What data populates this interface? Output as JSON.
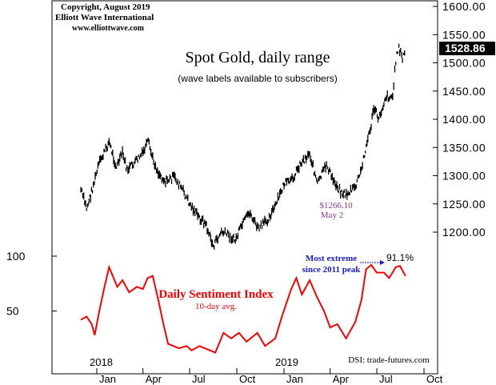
{
  "header": {
    "copyright": "Copyright, August 2019",
    "publisher": "Elliott Wave International",
    "url": "www.elliottwave.com"
  },
  "chart_data": {
    "type": "line",
    "title": "Spot Gold, daily range",
    "subtitle": "(wave labels available to subscribers)",
    "x_axis": {
      "ticks": [
        "Jan",
        "Apr",
        "Jul",
        "Oct",
        "Jan",
        "Apr",
        "Jul",
        "Oct"
      ],
      "year_labels": [
        "2018",
        "2019"
      ]
    },
    "price_axis": {
      "side": "right",
      "range": [
        1150,
        1610
      ],
      "ticks": [
        "1600.00",
        "1550.00",
        "1500.00",
        "1450.00",
        "1400.00",
        "1350.00",
        "1300.00",
        "1250.00",
        "1200.00"
      ],
      "last_value": "1528.86"
    },
    "sentiment_axis": {
      "side": "left",
      "range": [
        0,
        100
      ],
      "ticks": [
        "100",
        "50"
      ]
    },
    "series": [
      {
        "name": "Spot Gold",
        "color": "#000000",
        "points": [
          [
            "2017-12-01",
            1275
          ],
          [
            "2017-12-12",
            1242
          ],
          [
            "2017-12-20",
            1265
          ],
          [
            "2018-01-05",
            1320
          ],
          [
            "2018-01-25",
            1360
          ],
          [
            "2018-02-08",
            1315
          ],
          [
            "2018-02-20",
            1340
          ],
          [
            "2018-03-01",
            1310
          ],
          [
            "2018-03-15",
            1322
          ],
          [
            "2018-04-01",
            1340
          ],
          [
            "2018-04-11",
            1360
          ],
          [
            "2018-04-20",
            1330
          ],
          [
            "2018-05-01",
            1305
          ],
          [
            "2018-05-15",
            1290
          ],
          [
            "2018-06-01",
            1298
          ],
          [
            "2018-06-15",
            1278
          ],
          [
            "2018-07-01",
            1250
          ],
          [
            "2018-07-20",
            1225
          ],
          [
            "2018-08-01",
            1215
          ],
          [
            "2018-08-16",
            1175
          ],
          [
            "2018-09-01",
            1200
          ],
          [
            "2018-09-15",
            1195
          ],
          [
            "2018-09-28",
            1185
          ],
          [
            "2018-10-10",
            1210
          ],
          [
            "2018-10-26",
            1235
          ],
          [
            "2018-11-12",
            1205
          ],
          [
            "2018-11-28",
            1220
          ],
          [
            "2018-12-15",
            1245
          ],
          [
            "2019-01-01",
            1285
          ],
          [
            "2019-01-15",
            1290
          ],
          [
            "2019-02-01",
            1320
          ],
          [
            "2019-02-20",
            1340
          ],
          [
            "2019-03-07",
            1285
          ],
          [
            "2019-03-25",
            1320
          ],
          [
            "2019-04-05",
            1295
          ],
          [
            "2019-04-23",
            1270
          ],
          [
            "2019-05-02",
            1266
          ],
          [
            "2019-05-20",
            1280
          ],
          [
            "2019-06-01",
            1310
          ],
          [
            "2019-06-07",
            1340
          ],
          [
            "2019-06-20",
            1390
          ],
          [
            "2019-06-25",
            1420
          ],
          [
            "2019-07-05",
            1400
          ],
          [
            "2019-07-18",
            1440
          ],
          [
            "2019-08-01",
            1440
          ],
          [
            "2019-08-07",
            1505
          ],
          [
            "2019-08-13",
            1530
          ],
          [
            "2019-08-20",
            1505
          ],
          [
            "2019-08-26",
            1528.86
          ]
        ]
      },
      {
        "name": "Daily Sentiment Index",
        "color": "#ff0000",
        "points": [
          [
            "2017-12-01",
            42
          ],
          [
            "2017-12-12",
            45
          ],
          [
            "2017-12-22",
            38
          ],
          [
            "2017-12-28",
            28
          ],
          [
            "2018-01-05",
            48
          ],
          [
            "2018-01-15",
            70
          ],
          [
            "2018-01-25",
            90
          ],
          [
            "2018-02-10",
            72
          ],
          [
            "2018-02-20",
            78
          ],
          [
            "2018-03-05",
            67
          ],
          [
            "2018-03-20",
            72
          ],
          [
            "2018-04-01",
            70
          ],
          [
            "2018-04-10",
            80
          ],
          [
            "2018-04-20",
            82
          ],
          [
            "2018-05-01",
            60
          ],
          [
            "2018-05-10",
            40
          ],
          [
            "2018-05-20",
            20
          ],
          [
            "2018-06-10",
            16
          ],
          [
            "2018-06-25",
            18
          ],
          [
            "2018-07-05",
            14
          ],
          [
            "2018-07-20",
            18
          ],
          [
            "2018-08-10",
            14
          ],
          [
            "2018-08-20",
            12
          ],
          [
            "2018-09-05",
            30
          ],
          [
            "2018-09-20",
            25
          ],
          [
            "2018-10-05",
            30
          ],
          [
            "2018-10-20",
            22
          ],
          [
            "2018-11-10",
            30
          ],
          [
            "2018-11-25",
            18
          ],
          [
            "2018-12-15",
            25
          ],
          [
            "2018-12-28",
            45
          ],
          [
            "2019-01-15",
            70
          ],
          [
            "2019-01-25",
            80
          ],
          [
            "2019-02-05",
            65
          ],
          [
            "2019-02-20",
            78
          ],
          [
            "2019-03-07",
            62
          ],
          [
            "2019-03-20",
            50
          ],
          [
            "2019-04-01",
            35
          ],
          [
            "2019-04-15",
            38
          ],
          [
            "2019-04-28",
            28
          ],
          [
            "2019-05-02",
            25
          ],
          [
            "2019-05-20",
            40
          ],
          [
            "2019-06-01",
            60
          ],
          [
            "2019-06-10",
            88
          ],
          [
            "2019-06-20",
            92
          ],
          [
            "2019-07-01",
            85
          ],
          [
            "2019-07-15",
            85
          ],
          [
            "2019-07-25",
            80
          ],
          [
            "2019-08-07",
            90
          ],
          [
            "2019-08-15",
            91.1
          ],
          [
            "2019-08-26",
            82
          ]
        ]
      }
    ],
    "annotations": {
      "low_price": "$1266.10",
      "low_date": "May 2",
      "extreme_line1": "Most extreme",
      "extreme_line2": "since 2011 peak",
      "extreme_value": "91.1%",
      "dsi_title": "Daily Sentiment Index",
      "dsi_sub": "10-day avg.",
      "source": "DSI: trade-futures.com"
    }
  }
}
